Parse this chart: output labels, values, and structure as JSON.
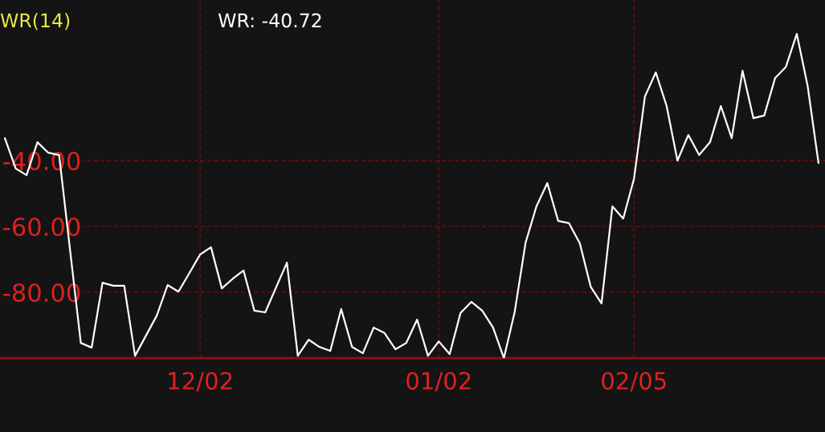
{
  "chart_data": {
    "type": "line",
    "title": "WR(14)",
    "subtitle": "WR: -40.72",
    "categories": [
      null,
      null,
      null,
      null,
      null,
      null,
      null,
      null,
      null,
      null,
      null,
      null,
      null,
      null,
      null,
      null,
      null,
      null,
      "12/02",
      null,
      null,
      null,
      null,
      null,
      null,
      null,
      null,
      null,
      null,
      null,
      null,
      null,
      null,
      null,
      null,
      null,
      null,
      null,
      null,
      null,
      "01/02",
      null,
      null,
      null,
      null,
      null,
      null,
      null,
      null,
      null,
      null,
      null,
      null,
      null,
      null,
      null,
      null,
      null,
      "02/05",
      null,
      null,
      null,
      null,
      null,
      null,
      null,
      null,
      null,
      null,
      null,
      null,
      null,
      null,
      null,
      null,
      null
    ],
    "series": [
      {
        "color": "#ffffff",
        "values": [
          -33.2,
          -42.4,
          -44.4,
          -34.4,
          -37.6,
          -38.3,
          -66.9,
          -95.4,
          -96.8,
          -77.1,
          -78.0,
          -78.0,
          -99.3,
          -93.2,
          -87.1,
          -77.8,
          -79.8,
          -74.2,
          -68.5,
          -66.3,
          -78.8,
          -75.9,
          -73.4,
          -85.6,
          -86.1,
          -78.5,
          -71.0,
          -99.3,
          -94.4,
          -96.6,
          -97.8,
          -85.1,
          -96.6,
          -98.5,
          -90.7,
          -92.4,
          -97.3,
          -95.4,
          -88.3,
          -99.3,
          -94.9,
          -98.8,
          -86.3,
          -82.9,
          -85.6,
          -90.7,
          -100,
          -85.9,
          -64.9,
          -53.9,
          -46.8,
          -58.3,
          -59.0,
          -65.1,
          -78.3,
          -83.4,
          -53.9,
          -57.6,
          -45.4,
          -20.5,
          -13.2,
          -23.4,
          -40.0,
          -32.2,
          -38.3,
          -34.4,
          -23.4,
          -33.2,
          -12.7,
          -27.1,
          -26.3,
          -14.9,
          -11.5,
          -1.5,
          -17.3,
          -40.7
        ]
      }
    ],
    "ylim": [
      -100,
      8.8
    ],
    "yticks": [
      {
        "value": -40,
        "label": "-40.00"
      },
      {
        "value": -60,
        "label": "-60.00"
      },
      {
        "value": -80,
        "label": "-80.00"
      }
    ],
    "grid": true,
    "line_style": "solid",
    "marker": "none"
  }
}
